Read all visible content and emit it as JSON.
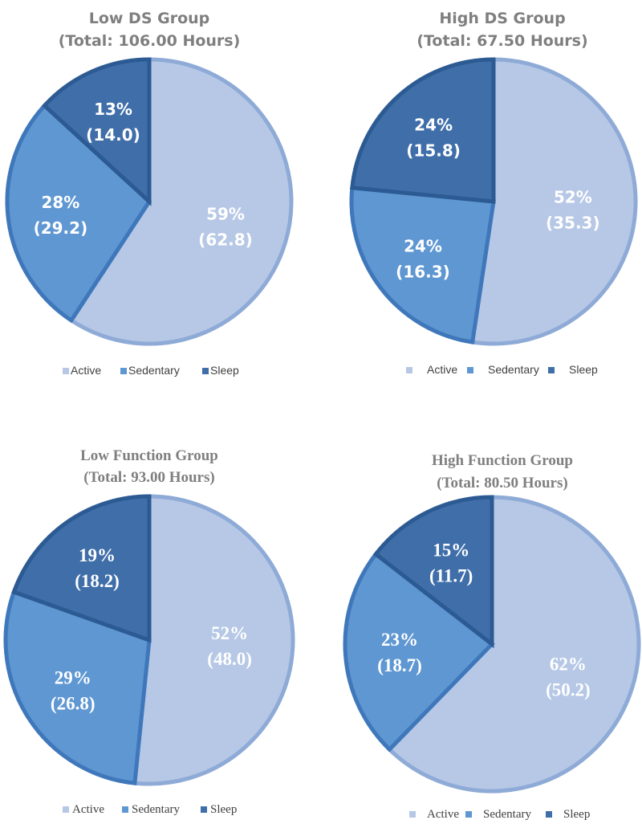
{
  "colors": {
    "active": "#b6c8e6",
    "sedentary": "#5f97d2",
    "sleep": "#3f6ea9",
    "active_edge": "#8eaad6",
    "sedentary_edge": "#3f77bb",
    "sleep_edge": "#2c5a93",
    "title": "#7f7f7f",
    "legend_text": "#404040",
    "slice_text": "#ffffff"
  },
  "legend_labels": [
    "Active",
    "Sedentary",
    "Sleep"
  ],
  "chart_data": [
    {
      "type": "pie",
      "title_line1": "Low DS Group",
      "title_line2": "(Total: 106.00 Hours)",
      "categories": [
        "Active",
        "Sedentary",
        "Sleep"
      ],
      "values": [
        62.8,
        29.2,
        14.0
      ],
      "percent_labels": [
        "59%",
        "28%",
        "13%"
      ],
      "value_labels": [
        "(62.8)",
        "(29.2)",
        "(14.0)"
      ]
    },
    {
      "type": "pie",
      "title_line1": "High DS Group",
      "title_line2": "(Total: 67.50 Hours)",
      "categories": [
        "Active",
        "Sedentary",
        "Sleep"
      ],
      "values": [
        35.3,
        16.3,
        15.8
      ],
      "percent_labels": [
        "52%",
        "24%",
        "24%"
      ],
      "value_labels": [
        "(35.3)",
        "(16.3)",
        "(15.8)"
      ]
    },
    {
      "type": "pie",
      "title_line1": "Low Function Group",
      "title_line2": "(Total: 93.00 Hours)",
      "categories": [
        "Active",
        "Sedentary",
        "Sleep"
      ],
      "values": [
        48.0,
        26.8,
        18.2
      ],
      "percent_labels": [
        "52%",
        "29%",
        "19%"
      ],
      "value_labels": [
        "(48.0)",
        "(26.8)",
        "(18.2)"
      ]
    },
    {
      "type": "pie",
      "title_line1": "High Function Group",
      "title_line2": "(Total: 80.50 Hours)",
      "categories": [
        "Active",
        "Sedentary",
        "Sleep"
      ],
      "values": [
        50.2,
        18.7,
        11.7
      ],
      "percent_labels": [
        "62%",
        "23%",
        "15%"
      ],
      "value_labels": [
        "(50.2)",
        "(18.7)",
        "(11.7)"
      ]
    }
  ]
}
